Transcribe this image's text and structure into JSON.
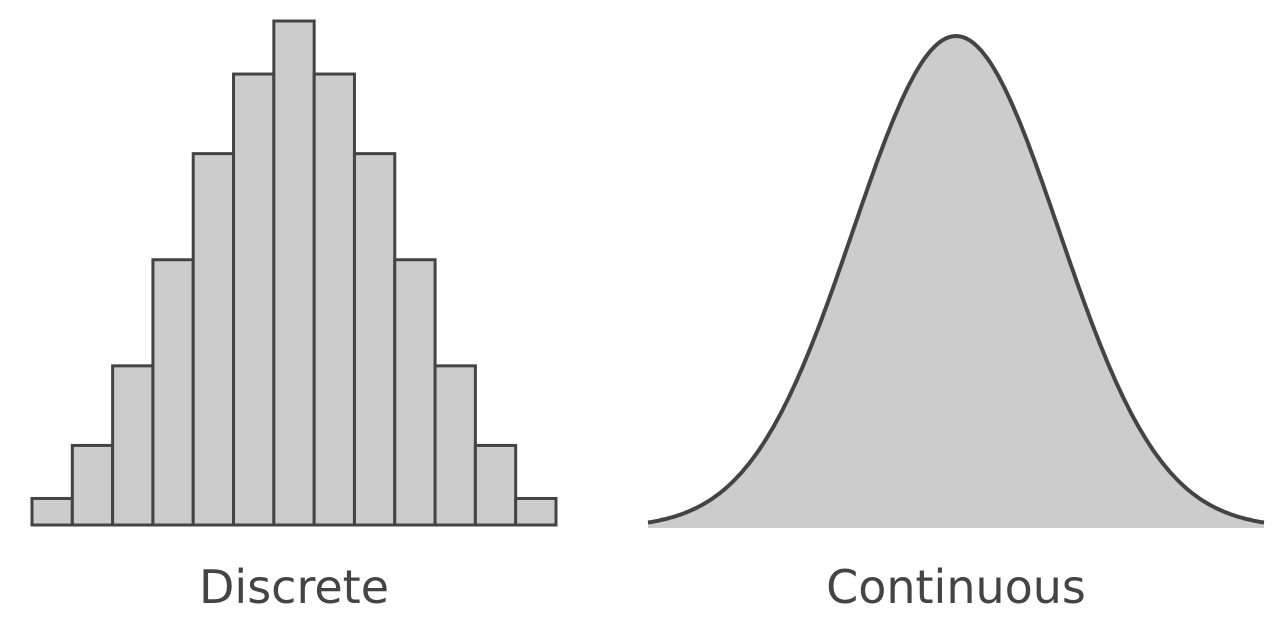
{
  "colors": {
    "fill": "#cccccc",
    "stroke": "#444444",
    "background": "#ffffff"
  },
  "chart_data": [
    {
      "type": "bar",
      "label": "Discrete",
      "values": [
        1,
        3,
        6,
        10,
        14,
        17,
        19,
        17,
        14,
        10,
        6,
        3,
        1
      ],
      "ylim": [
        0,
        19
      ],
      "grid": false,
      "axes_visible": false
    },
    {
      "type": "area",
      "label": "Continuous",
      "x": [
        -3.0,
        -2.5,
        -2.0,
        -1.5,
        -1.0,
        -0.5,
        0.0,
        0.5,
        1.0,
        1.5,
        2.0,
        2.5,
        3.0
      ],
      "y": [
        0.011,
        0.044,
        0.135,
        0.325,
        0.607,
        0.882,
        1.0,
        0.882,
        0.607,
        0.325,
        0.135,
        0.044,
        0.011
      ],
      "ylim": [
        0,
        1
      ],
      "grid": false,
      "axes_visible": false
    }
  ]
}
